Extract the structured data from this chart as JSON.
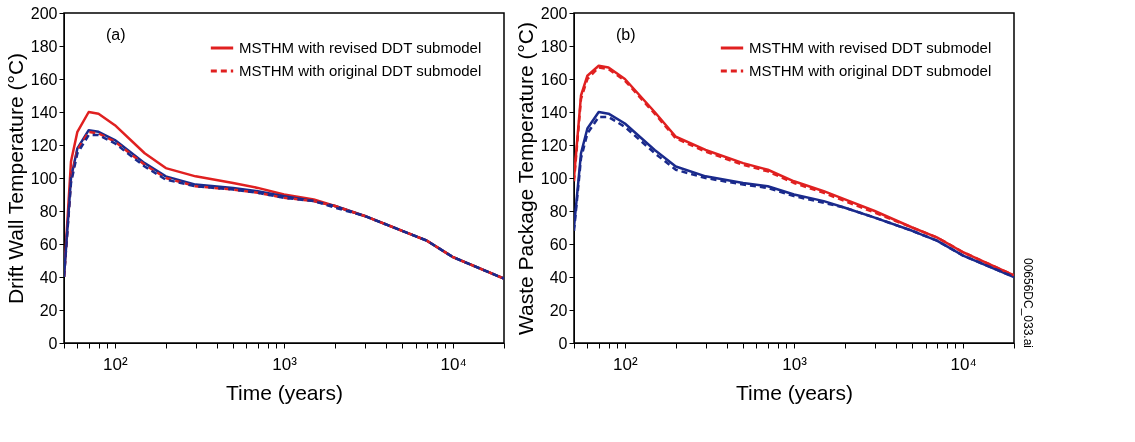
{
  "chart_data": [
    {
      "type": "line",
      "xlabel": "Time (years)",
      "ylabel": "Drift Wall Temperature (°C)",
      "log": "x",
      "grid": false,
      "legend": "top right",
      "marker": "none",
      "annotations": [
        "(a)"
      ],
      "x": [
        50,
        55,
        60,
        70,
        80,
        100,
        150,
        200,
        300,
        500,
        700,
        1000,
        1500,
        2000,
        3000,
        5000,
        7000,
        10000,
        20000
      ],
      "xlim": [
        50,
        20000
      ],
      "xticks": [
        {
          "value": 50,
          "label": null
        },
        {
          "value": 60,
          "label": null
        },
        {
          "value": 70,
          "label": null
        },
        {
          "value": 80,
          "label": null
        },
        {
          "value": 90,
          "label": null
        },
        {
          "value": 100,
          "label": "10²"
        },
        {
          "value": 200,
          "label": null
        },
        {
          "value": 300,
          "label": null
        },
        {
          "value": 400,
          "label": null
        },
        {
          "value": 500,
          "label": null
        },
        {
          "value": 600,
          "label": null
        },
        {
          "value": 700,
          "label": null
        },
        {
          "value": 800,
          "label": null
        },
        {
          "value": 900,
          "label": null
        },
        {
          "value": 1000,
          "label": "10³"
        },
        {
          "value": 2000,
          "label": null
        },
        {
          "value": 3000,
          "label": null
        },
        {
          "value": 4000,
          "label": null
        },
        {
          "value": 5000,
          "label": null
        },
        {
          "value": 6000,
          "label": null
        },
        {
          "value": 7000,
          "label": null
        },
        {
          "value": 8000,
          "label": null
        },
        {
          "value": 9000,
          "label": null
        },
        {
          "value": 10000,
          "label": "10⁴"
        },
        {
          "value": 20000,
          "label": null
        }
      ],
      "ylim": [
        0,
        200
      ],
      "yticks": [
        0,
        20,
        40,
        60,
        80,
        100,
        120,
        140,
        160,
        180,
        200
      ],
      "series": [
        {
          "name": "MSTHM with revised DDT submodel",
          "color": "#e02020",
          "line_style": "solid",
          "values": [
            40,
            110,
            128,
            140,
            139,
            132,
            115,
            106,
            101,
            97,
            94,
            90,
            87,
            83,
            77,
            68,
            62,
            52,
            39
          ]
        },
        {
          "color": "#1a2a8c",
          "line_style": "solid",
          "values": [
            40,
            100,
            118,
            129,
            128,
            123,
            109,
            101,
            96,
            94,
            92,
            89,
            86,
            83,
            77,
            68,
            62,
            52,
            39
          ]
        },
        {
          "name": "MSTHM with original DDT submodel",
          "color": "#e02020",
          "line_style": "dashed",
          "values": [
            40,
            99,
            117,
            128,
            127,
            122,
            108,
            100,
            95,
            93,
            91,
            88,
            86,
            83,
            77,
            68,
            62,
            52,
            39
          ]
        },
        {
          "color": "#1a2a8c",
          "line_style": "dashed",
          "values": [
            40,
            97,
            115,
            126,
            126,
            121,
            107,
            99,
            95,
            93,
            91,
            88,
            86,
            82,
            77,
            68,
            62,
            52,
            39
          ]
        }
      ]
    },
    {
      "type": "line",
      "xlabel": "Time (years)",
      "ylabel": "Waste Package Temperature (°C)",
      "log": "x",
      "grid": false,
      "legend": "top right",
      "marker": "none",
      "annotations": [
        "(b)",
        "00656DC_033.ai"
      ],
      "x": [
        50,
        55,
        60,
        70,
        80,
        100,
        150,
        200,
        300,
        500,
        700,
        1000,
        1500,
        2000,
        3000,
        5000,
        7000,
        10000,
        20000
      ],
      "xlim": [
        50,
        20000
      ],
      "xticks": [
        {
          "value": 50,
          "label": null
        },
        {
          "value": 60,
          "label": null
        },
        {
          "value": 70,
          "label": null
        },
        {
          "value": 80,
          "label": null
        },
        {
          "value": 90,
          "label": null
        },
        {
          "value": 100,
          "label": "10²"
        },
        {
          "value": 200,
          "label": null
        },
        {
          "value": 300,
          "label": null
        },
        {
          "value": 400,
          "label": null
        },
        {
          "value": 500,
          "label": null
        },
        {
          "value": 600,
          "label": null
        },
        {
          "value": 700,
          "label": null
        },
        {
          "value": 800,
          "label": null
        },
        {
          "value": 900,
          "label": null
        },
        {
          "value": 1000,
          "label": "10³"
        },
        {
          "value": 2000,
          "label": null
        },
        {
          "value": 3000,
          "label": null
        },
        {
          "value": 4000,
          "label": null
        },
        {
          "value": 5000,
          "label": null
        },
        {
          "value": 6000,
          "label": null
        },
        {
          "value": 7000,
          "label": null
        },
        {
          "value": 8000,
          "label": null
        },
        {
          "value": 9000,
          "label": null
        },
        {
          "value": 10000,
          "label": "10⁴"
        },
        {
          "value": 20000,
          "label": null
        }
      ],
      "ylim": [
        0,
        200
      ],
      "yticks": [
        0,
        20,
        40,
        60,
        80,
        100,
        120,
        140,
        160,
        180,
        200
      ],
      "series": [
        {
          "name": "MSTHM with revised DDT submodel",
          "color": "#e02020",
          "line_style": "solid",
          "values": [
            100,
            150,
            162,
            168,
            167,
            160,
            140,
            125,
            117,
            109,
            105,
            98,
            92,
            87,
            80,
            70,
            64,
            55,
            41
          ]
        },
        {
          "color": "#1a2a8c",
          "line_style": "solid",
          "values": [
            70,
            115,
            130,
            140,
            139,
            133,
            117,
            107,
            101,
            97,
            95,
            90,
            86,
            82,
            76,
            68,
            62,
            53,
            40
          ]
        },
        {
          "name": "MSTHM with original DDT submodel",
          "color": "#e02020",
          "line_style": "dashed",
          "values": [
            98,
            148,
            160,
            167,
            166,
            159,
            139,
            124,
            116,
            108,
            104,
            97,
            91,
            86,
            79,
            70,
            64,
            55,
            41
          ]
        },
        {
          "color": "#1a2a8c",
          "line_style": "dashed",
          "values": [
            68,
            112,
            127,
            137,
            137,
            131,
            115,
            105,
            100,
            96,
            94,
            89,
            85,
            82,
            76,
            68,
            62,
            53,
            40
          ]
        }
      ]
    }
  ]
}
